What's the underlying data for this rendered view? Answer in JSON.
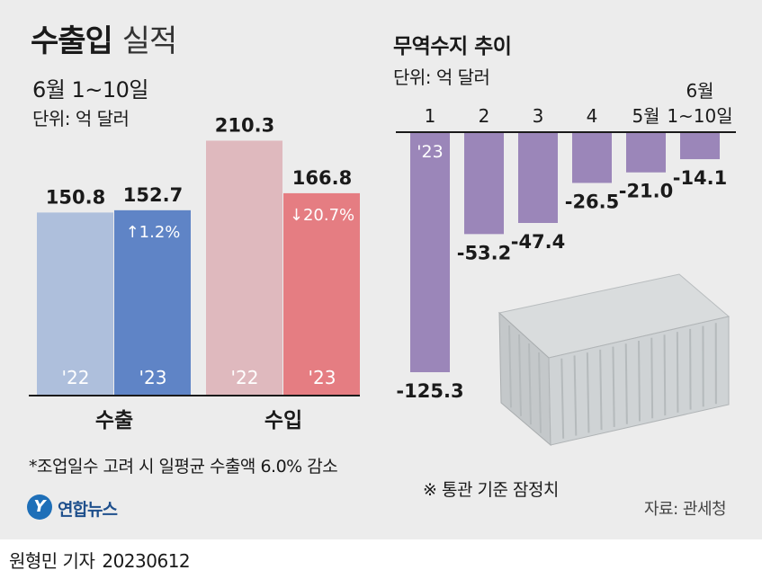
{
  "title_main": "수출입",
  "title_sub": "실적",
  "period": "6월 1~10일",
  "unit": "단위: 억 달러",
  "right_title": "무역수지 추이",
  "right_unit": "단위: 억 달러",
  "footnote": "*조업일수 고려 시 일평균 수출액 6.0% 감소",
  "note": "※ 통관 기준 잠정치",
  "source": "자료: 관세청",
  "logo_text": "연합뉴스",
  "byline": "원형민 기자",
  "date": "20230612",
  "colors": {
    "export_22": "#aebfdc",
    "export_23": "#5f84c6",
    "import_22": "#dfb9be",
    "import_23": "#e57d82",
    "balance": "#9b86b9",
    "panel": "#ececec"
  },
  "chart_data": [
    {
      "type": "bar",
      "title": "수출입 실적",
      "subtitle": "6월 1~10일",
      "ylabel": "단위: 억 달러",
      "ylim": [
        0,
        230
      ],
      "groups": [
        {
          "name": "수출",
          "bars": [
            {
              "year_label": "'22",
              "value": 150.8,
              "value_label": "150.8",
              "change": ""
            },
            {
              "year_label": "'23",
              "value": 152.7,
              "value_label": "152.7",
              "change": "↑1.2%"
            }
          ]
        },
        {
          "name": "수입",
          "bars": [
            {
              "year_label": "'22",
              "value": 210.3,
              "value_label": "210.3",
              "change": ""
            },
            {
              "year_label": "'23",
              "value": 166.8,
              "value_label": "166.8",
              "change": "↓20.7%"
            }
          ]
        }
      ]
    },
    {
      "type": "bar",
      "title": "무역수지 추이",
      "ylabel": "단위: 억 달러",
      "ylim": [
        -130,
        0
      ],
      "year_label": "'23",
      "categories": [
        "1",
        "2",
        "3",
        "4",
        "5월",
        "6월 1~10일"
      ],
      "category_lines": [
        [
          "1"
        ],
        [
          "2"
        ],
        [
          "3"
        ],
        [
          "4"
        ],
        [
          "5월"
        ],
        [
          "6월",
          "1~10일"
        ]
      ],
      "values": [
        -125.3,
        -53.2,
        -47.4,
        -26.5,
        -21.0,
        -14.1
      ],
      "value_labels": [
        "-125.3",
        "-53.2",
        "-47.4",
        "-26.5",
        "-21.0",
        "-14.1"
      ]
    }
  ]
}
